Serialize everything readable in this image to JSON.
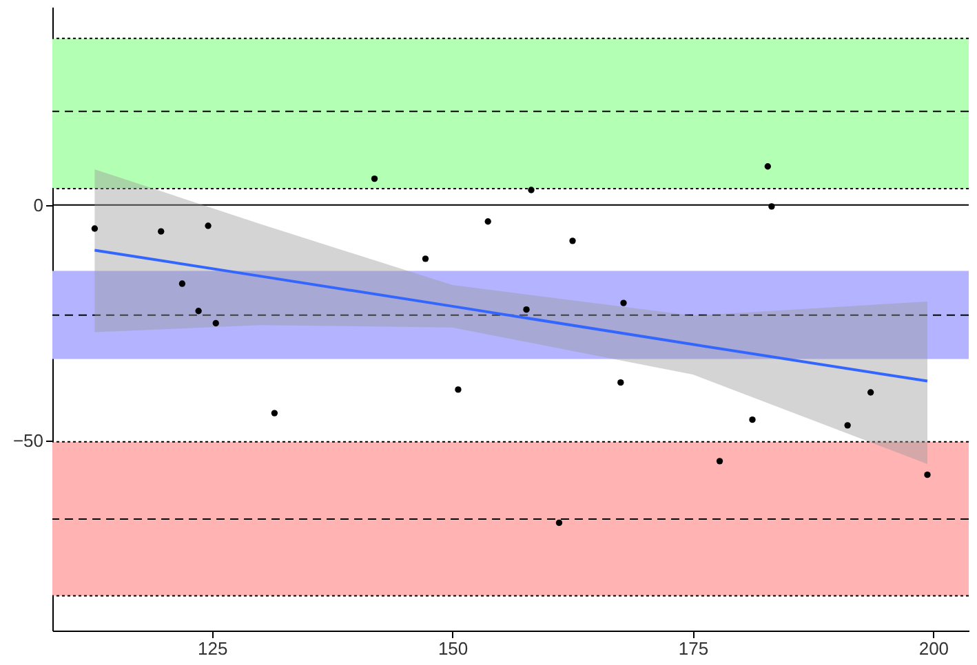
{
  "chart_data": {
    "type": "scatter",
    "xlim": [
      108.4,
      203.7
    ],
    "xticks": [
      125,
      150,
      175,
      200
    ],
    "ylim": [
      -90.4,
      42.1
    ],
    "yticks": [
      -50,
      0
    ],
    "grid": false,
    "series": [
      {
        "marker": "circle",
        "color": "#000000",
        "x": [
          112.8,
          119.7,
          121.9,
          123.6,
          124.6,
          125.4,
          131.5,
          141.9,
          147.2,
          150.6,
          153.7,
          157.7,
          158.2,
          161.1,
          162.5,
          167.5,
          167.8,
          177.8,
          181.2,
          182.8,
          183.2,
          191.1,
          193.5,
          199.4
        ],
        "values": [
          -5.0,
          -5.6,
          -16.7,
          -22.5,
          -4.4,
          -25.1,
          -44.2,
          5.6,
          -11.4,
          -39.2,
          -3.5,
          -22.2,
          3.2,
          -67.5,
          -7.6,
          -37.7,
          -20.8,
          -54.4,
          -45.6,
          8.2,
          -0.3,
          -46.8,
          -39.8,
          -57.3
        ]
      },
      {
        "type": "line",
        "marker": "none",
        "color": "#3366ff",
        "line_style": "solid",
        "x": [
          112.8,
          130,
          150,
          175,
          199.4
        ],
        "values": [
          -9.6,
          -15.1,
          -21.5,
          -29.6,
          -37.4
        ],
        "lower": [
          -27,
          -25.5,
          -26,
          -36,
          -55
        ],
        "upper": [
          7.6,
          -4,
          -17,
          -23.5,
          -20.5
        ]
      }
    ],
    "bands": [
      {
        "axis": "y",
        "from": 3.5,
        "to": 35.4,
        "color": "#b3ffb3"
      },
      {
        "axis": "y",
        "from": -32.7,
        "to": -14.0,
        "color": "#b3b3ff"
      },
      {
        "axis": "y",
        "from": -83.0,
        "to": -50.3,
        "color": "#ffb3b3"
      }
    ],
    "ref_lines": [
      {
        "axis": "y",
        "value": 0,
        "line_style": "solid"
      },
      {
        "axis": "y",
        "value": 19.9,
        "line_style": "dashed"
      },
      {
        "axis": "y",
        "value": -23.4,
        "line_style": "dashed"
      },
      {
        "axis": "y",
        "value": -66.7,
        "line_style": "dashed"
      },
      {
        "axis": "y",
        "value": 35.4,
        "line_style": "dotted"
      },
      {
        "axis": "y",
        "value": 3.5,
        "line_style": "dotted"
      },
      {
        "axis": "y",
        "value": -50.3,
        "line_style": "dotted"
      },
      {
        "axis": "y",
        "value": -83.0,
        "line_style": "dotted"
      }
    ]
  }
}
